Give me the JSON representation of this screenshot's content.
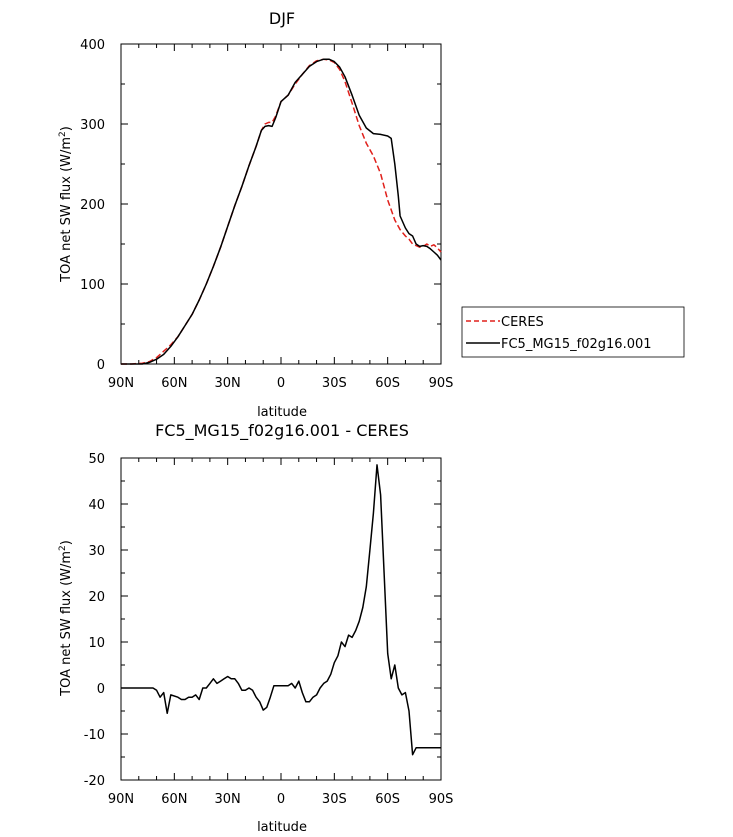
{
  "chart_data": [
    {
      "type": "line",
      "title": "DJF",
      "xlabel": "latitude",
      "ylabel": "TOA net SW flux (W/m",
      "ylabel_sup": "2",
      "ylabel_end": ")",
      "xlim": [
        -90,
        90
      ],
      "ylim": [
        0,
        400
      ],
      "xticks": [
        -90,
        -60,
        -30,
        0,
        30,
        60,
        90
      ],
      "xtick_labels": [
        "90N",
        "60N",
        "30N",
        "0",
        "30S",
        "60S",
        "90S"
      ],
      "yticks": [
        0,
        100,
        200,
        300,
        400
      ],
      "ytick_labels": [
        "0",
        "100",
        "200",
        "300",
        "400"
      ],
      "grid": false,
      "legend": "right",
      "series": [
        {
          "name": "CERES",
          "color": "#e0201b",
          "dash": true,
          "x": [
            -90,
            -84,
            -78,
            -74,
            -70,
            -66,
            -62,
            -58,
            -54,
            -50,
            -46,
            -42,
            -38,
            -34,
            -30,
            -26,
            -22,
            -18,
            -14,
            -11,
            -9,
            -7,
            -5,
            -3,
            0,
            4,
            8,
            12,
            16,
            20,
            24,
            27,
            30,
            33,
            36,
            40,
            44,
            48,
            52,
            56,
            60,
            64,
            67,
            70,
            72,
            74,
            76,
            78,
            80,
            82,
            84,
            86,
            88,
            90
          ],
          "y": [
            0,
            0,
            1,
            3,
            8,
            16,
            24,
            34,
            48,
            62,
            80,
            100,
            122,
            146,
            172,
            198,
            222,
            248,
            272,
            292,
            300,
            302,
            302,
            310,
            328,
            336,
            350,
            362,
            373,
            379,
            381,
            380,
            377,
            368,
            353,
            326,
            298,
            276,
            260,
            238,
            205,
            180,
            168,
            160,
            156,
            150,
            148,
            146,
            147,
            150,
            147,
            149,
            145,
            140
          ]
        },
        {
          "name": "FC5_MG15_f02g16.001",
          "color": "#000000",
          "dash": false,
          "x": [
            -90,
            -84,
            -78,
            -74,
            -70,
            -66,
            -62,
            -58,
            -54,
            -50,
            -46,
            -42,
            -38,
            -34,
            -30,
            -26,
            -22,
            -18,
            -14,
            -11,
            -9,
            -7,
            -5,
            -3,
            0,
            4,
            8,
            12,
            16,
            20,
            24,
            27,
            30,
            33,
            36,
            40,
            44,
            48,
            52,
            56,
            60,
            62,
            64,
            66,
            67,
            70,
            72,
            74,
            76,
            78,
            80,
            82,
            84,
            86,
            88,
            90
          ],
          "y": [
            0,
            0,
            0,
            2,
            6,
            12,
            22,
            34,
            48,
            62,
            80,
            100,
            122,
            146,
            172,
            198,
            222,
            248,
            272,
            292,
            297,
            298,
            297,
            308,
            328,
            336,
            352,
            362,
            372,
            378,
            381,
            381,
            378,
            371,
            359,
            336,
            311,
            295,
            288,
            287,
            285,
            282,
            250,
            210,
            185,
            170,
            163,
            160,
            150,
            147,
            148,
            147,
            144,
            140,
            136,
            130
          ]
        }
      ]
    },
    {
      "type": "line",
      "title": "FC5_MG15_f02g16.001 - CERES",
      "xlabel": "latitude",
      "ylabel": "TOA net SW flux (W/m",
      "ylabel_sup": "2",
      "ylabel_end": ")",
      "xlim": [
        -90,
        90
      ],
      "ylim": [
        -20,
        50
      ],
      "xticks": [
        -90,
        -60,
        -30,
        0,
        30,
        60,
        90
      ],
      "xtick_labels": [
        "90N",
        "60N",
        "30N",
        "0",
        "30S",
        "60S",
        "90S"
      ],
      "yticks": [
        -20,
        -10,
        0,
        10,
        20,
        30,
        40,
        50
      ],
      "ytick_labels": [
        "-20",
        "-10",
        "0",
        "10",
        "20",
        "30",
        "40",
        "50"
      ],
      "grid": false,
      "series": [
        {
          "name": "",
          "color": "#000000",
          "dash": false,
          "x": [
            -90,
            -85,
            -80,
            -75,
            -72,
            -70,
            -68,
            -66,
            -64,
            -62,
            -58,
            -56,
            -54,
            -52,
            -50,
            -48,
            -46,
            -44,
            -42,
            -40,
            -38,
            -36,
            -34,
            -32,
            -30,
            -28,
            -26,
            -24,
            -22,
            -20,
            -18,
            -16,
            -14,
            -12,
            -10,
            -8,
            -6,
            -4,
            -2,
            0,
            2,
            4,
            6,
            8,
            10,
            12,
            14,
            16,
            18,
            20,
            22,
            24,
            26,
            28,
            30,
            32,
            34,
            36,
            38,
            40,
            42,
            44,
            46,
            48,
            50,
            52,
            54,
            56,
            58,
            60,
            62,
            64,
            66,
            68,
            70,
            72,
            74,
            76,
            78,
            80,
            82,
            84,
            86,
            88,
            90
          ],
          "y": [
            0,
            0,
            0,
            0,
            0,
            -0.5,
            -2,
            -1,
            -5.5,
            -1.5,
            -2,
            -2.5,
            -2.5,
            -2,
            -2,
            -1.5,
            -2.5,
            0,
            0,
            1,
            2,
            1,
            1.5,
            2,
            2.5,
            2,
            2,
            1,
            -0.5,
            -0.5,
            0,
            -0.5,
            -2,
            -3,
            -4.8,
            -4.2,
            -2,
            0.5,
            0.5,
            0.5,
            0.5,
            0.5,
            1,
            0,
            1.5,
            -1,
            -3,
            -3,
            -2,
            -1.5,
            0,
            1,
            1.5,
            3,
            5.5,
            7,
            10,
            9,
            11.5,
            11,
            12.5,
            14.5,
            17.5,
            22,
            30,
            38,
            48.5,
            42,
            25,
            7.5,
            2,
            5,
            0,
            -1.5,
            -1,
            -5,
            -14.5,
            -13,
            -13,
            -13,
            -13,
            -13,
            -13,
            -13,
            -13
          ]
        }
      ]
    }
  ]
}
